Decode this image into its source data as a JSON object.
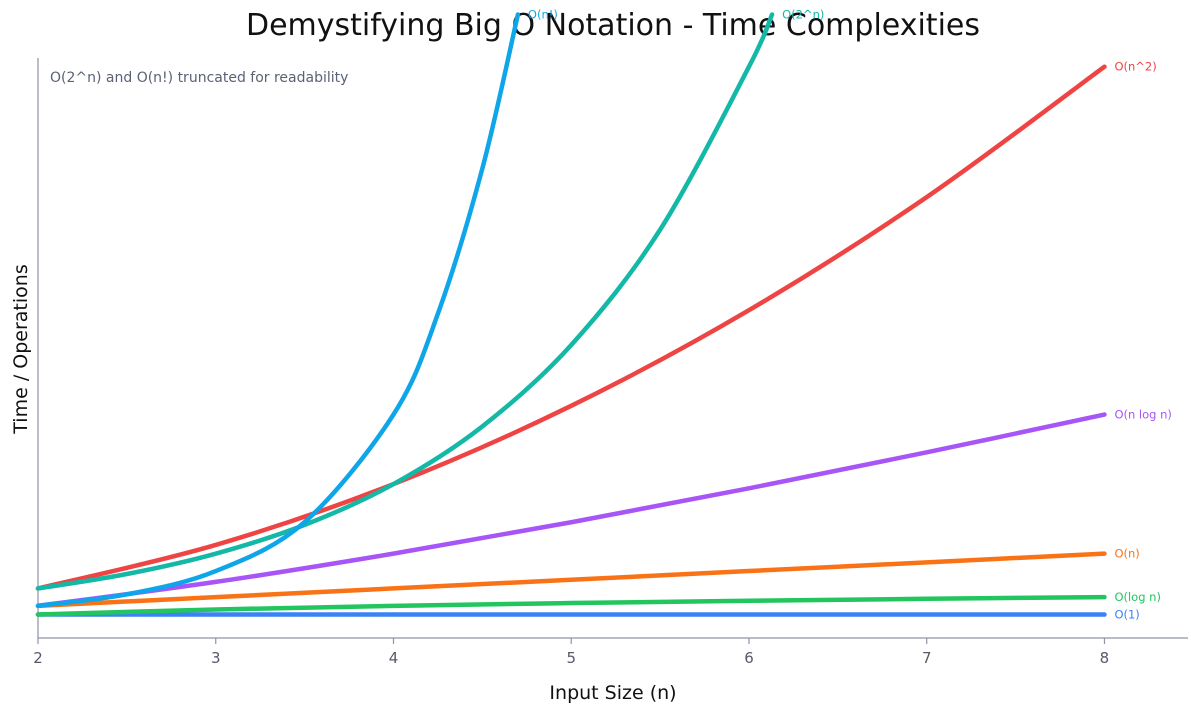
{
  "chart_data": {
    "type": "line",
    "title": "Demystifying Big O Notation - Time Complexities",
    "xlabel": "Input Size (n)",
    "ylabel": "Time / Operations",
    "annotation": "O(2^n) and O(n!) truncated for readability",
    "xlim": [
      2,
      8.47
    ],
    "ylim": [
      -1.7,
      65
    ],
    "xticks": [
      2,
      3,
      4,
      5,
      6,
      7,
      8
    ],
    "yticks": [],
    "grid": false,
    "legend": "none (inline labels at line ends)",
    "series": [
      {
        "name": "O(1)",
        "color": "#3b82f6",
        "x": [
          2,
          3,
          4,
          5,
          6,
          7,
          8
        ],
        "y": [
          1,
          1,
          1,
          1,
          1,
          1,
          1
        ]
      },
      {
        "name": "O(log n)",
        "color": "#22c55e",
        "x": [
          2,
          3,
          4,
          5,
          6,
          7,
          8
        ],
        "y": [
          1,
          1.58,
          2,
          2.32,
          2.58,
          2.81,
          3
        ]
      },
      {
        "name": "O(n)",
        "color": "#f97316",
        "x": [
          2,
          3,
          4,
          5,
          6,
          7,
          8
        ],
        "y": [
          2,
          3,
          4,
          5,
          6,
          7,
          8
        ]
      },
      {
        "name": "O(n log n)",
        "color": "#a855f7",
        "x": [
          2,
          3,
          4,
          5,
          6,
          7,
          8
        ],
        "y": [
          2,
          4.75,
          8,
          11.61,
          15.51,
          19.65,
          24
        ]
      },
      {
        "name": "O(n^2)",
        "color": "#ef4444",
        "x": [
          2,
          3,
          4,
          5,
          6,
          7,
          8
        ],
        "y": [
          4,
          9,
          16,
          25,
          36,
          49,
          64
        ]
      },
      {
        "name": "O(2^n)",
        "color": "#14b8a6",
        "x": [
          2,
          2.5,
          3,
          3.5,
          4,
          4.5,
          5,
          5.5,
          6,
          6.13
        ],
        "y": [
          4,
          5.66,
          8,
          11.31,
          16,
          22.63,
          32,
          45.25,
          64,
          70
        ]
      },
      {
        "name": "O(n!)",
        "color": "#0ea5e9",
        "x": [
          2,
          2.5,
          3,
          3.5,
          4,
          4.25,
          4.5,
          4.7
        ],
        "y": [
          2,
          3.32,
          6,
          11.63,
          24,
          35.6,
          52.3,
          70
        ]
      }
    ]
  }
}
